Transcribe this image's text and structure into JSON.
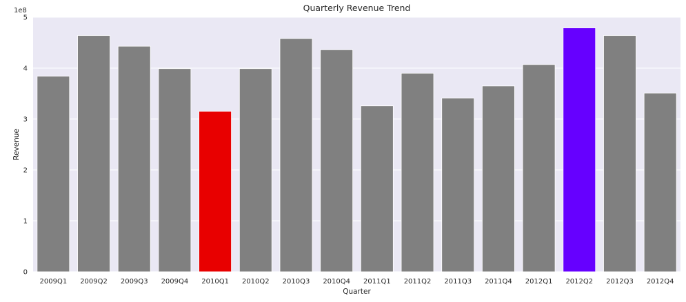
{
  "chart_data": {
    "type": "bar",
    "title": "Quarterly Revenue Trend",
    "xlabel": "Quarter",
    "ylabel": "Revenue",
    "y_scale_label": "1e8",
    "ylim": [
      0,
      5
    ],
    "yticks": [
      "0",
      "1",
      "2",
      "3",
      "4",
      "5"
    ],
    "grid": true,
    "legend": "none",
    "categories": [
      "2009Q1",
      "2009Q2",
      "2009Q3",
      "2009Q4",
      "2010Q1",
      "2010Q2",
      "2010Q3",
      "2010Q4",
      "2011Q1",
      "2011Q2",
      "2011Q3",
      "2011Q4",
      "2012Q1",
      "2012Q2",
      "2012Q3",
      "2012Q4"
    ],
    "values": [
      3.84,
      4.64,
      4.43,
      3.99,
      3.15,
      3.99,
      4.58,
      4.36,
      3.26,
      3.9,
      3.41,
      3.65,
      4.07,
      4.79,
      4.64,
      3.51
    ],
    "colors": {
      "default": "#808080",
      "lowest": "#e80000",
      "highest": "#6600ff",
      "plot_background": "#eae8f4",
      "gridline": "#ffffff"
    }
  }
}
